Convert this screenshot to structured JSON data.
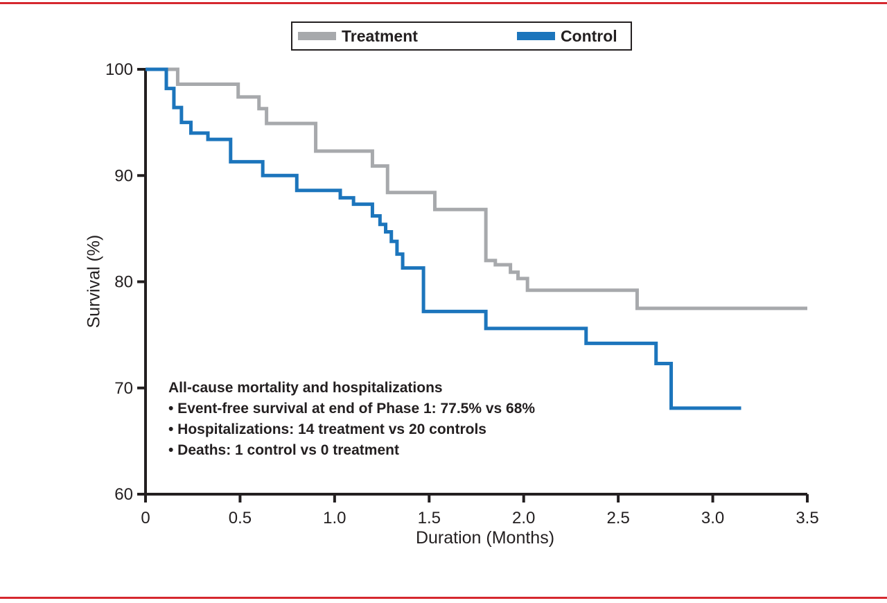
{
  "page": {
    "border_color": "#d6282f",
    "axis_color": "#231f20",
    "text_color": "#231f20"
  },
  "annotations": {
    "title": "All-cause mortality and hospitalizations",
    "lines": [
      "• Event-free survival at end of Phase 1: 77.5% vs 68%",
      "• Hospitalizations: 14 treatment vs 20 controls",
      "• Deaths: 1 control vs 0 treatment"
    ]
  },
  "chart_data": {
    "type": "line",
    "subtype": "kaplan-meier-step",
    "title": "",
    "xlabel": "Duration (Months)",
    "ylabel": "Survival (%)",
    "xlim": [
      0,
      3.5
    ],
    "ylim": [
      60,
      100
    ],
    "grid": false,
    "legend_position": "top-center",
    "x_ticks": [
      {
        "value": 0,
        "label": "0"
      },
      {
        "value": 0.5,
        "label": "0.5"
      },
      {
        "value": 1.0,
        "label": "1.0"
      },
      {
        "value": 1.5,
        "label": "1.5"
      },
      {
        "value": 2.0,
        "label": "2.0"
      },
      {
        "value": 2.5,
        "label": "2.5"
      },
      {
        "value": 3.0,
        "label": "3.0"
      },
      {
        "value": 3.5,
        "label": "3.5"
      }
    ],
    "y_ticks": [
      {
        "value": 100,
        "label": "100"
      },
      {
        "value": 90,
        "label": "90"
      },
      {
        "value": 80,
        "label": "80"
      },
      {
        "value": 70,
        "label": "70"
      },
      {
        "value": 60,
        "label": "60"
      }
    ],
    "series": [
      {
        "name": "Treatment",
        "color": "#a7a9ac",
        "x_end": 3.5,
        "points": [
          [
            0,
            100
          ],
          [
            0.17,
            98.6
          ],
          [
            0.49,
            97.4
          ],
          [
            0.6,
            96.3
          ],
          [
            0.64,
            94.9
          ],
          [
            0.9,
            92.3
          ],
          [
            1.2,
            90.9
          ],
          [
            1.28,
            88.4
          ],
          [
            1.53,
            86.8
          ],
          [
            1.8,
            82.0
          ],
          [
            1.85,
            81.6
          ],
          [
            1.93,
            80.9
          ],
          [
            1.97,
            80.3
          ],
          [
            2.02,
            79.2
          ],
          [
            2.6,
            77.5
          ]
        ]
      },
      {
        "name": "Control",
        "color": "#1c75bc",
        "x_end": 3.15,
        "points": [
          [
            0,
            100
          ],
          [
            0.11,
            98.2
          ],
          [
            0.15,
            96.4
          ],
          [
            0.19,
            95.0
          ],
          [
            0.24,
            94.0
          ],
          [
            0.33,
            93.4
          ],
          [
            0.45,
            91.3
          ],
          [
            0.62,
            90.0
          ],
          [
            0.8,
            88.6
          ],
          [
            1.03,
            87.9
          ],
          [
            1.1,
            87.3
          ],
          [
            1.2,
            86.2
          ],
          [
            1.24,
            85.4
          ],
          [
            1.27,
            84.7
          ],
          [
            1.3,
            83.8
          ],
          [
            1.33,
            82.6
          ],
          [
            1.36,
            81.3
          ],
          [
            1.47,
            77.2
          ],
          [
            1.8,
            75.6
          ],
          [
            2.33,
            74.2
          ],
          [
            2.7,
            72.3
          ],
          [
            2.78,
            68.1
          ]
        ]
      }
    ]
  }
}
